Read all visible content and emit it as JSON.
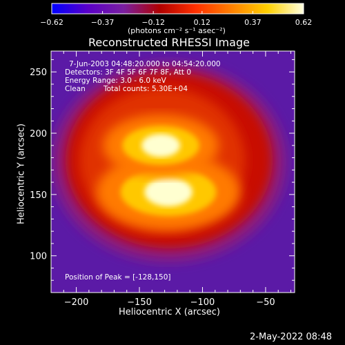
{
  "colorbar": {
    "tick_labels": [
      "-0.62",
      "-0.37",
      "-0.12",
      "0.12",
      "0.37",
      "0.62"
    ],
    "unit_label": "(photons cm⁻² s⁻¹ asec⁻²)",
    "colors": [
      "#0000ff",
      "#5a00c8",
      "#7a1fa0",
      "#b00000",
      "#ff3000",
      "#ff8000",
      "#ffd000",
      "#ffffe0"
    ]
  },
  "chart_data": {
    "type": "heatmap",
    "title": "Reconstructed RHESSI Image",
    "xlabel": "Heliocentric X (arcsec)",
    "ylabel": "Heliocentric Y (arcsec)",
    "xlim": [
      -220,
      -27
    ],
    "ylim": [
      70,
      267
    ],
    "xticks": [
      -200,
      -150,
      -100,
      -50
    ],
    "yticks": [
      100,
      150,
      200,
      250
    ],
    "value_range": [
      -0.62,
      0.62
    ],
    "peak": [
      -128,
      150
    ],
    "sources": [
      {
        "x": -127,
        "y": 152,
        "peak_value": 0.62
      },
      {
        "x": -133,
        "y": 190,
        "peak_value": 0.5
      }
    ],
    "annotations": {
      "time_range": "7-Jun-2003 04:48:20.000 to 04:54:20.000",
      "detectors": "Detectors: 3F 4F 5F 6F 7F 8F, Att 0",
      "energy_range": "Energy Range: 3.0 - 6.0 keV",
      "method": "Clean",
      "total_counts": "Total counts: 5.30E+04",
      "peak_position": "Position of Peak = [-128,150]"
    }
  },
  "footer": {
    "timestamp": "2-May-2022 08:48"
  }
}
